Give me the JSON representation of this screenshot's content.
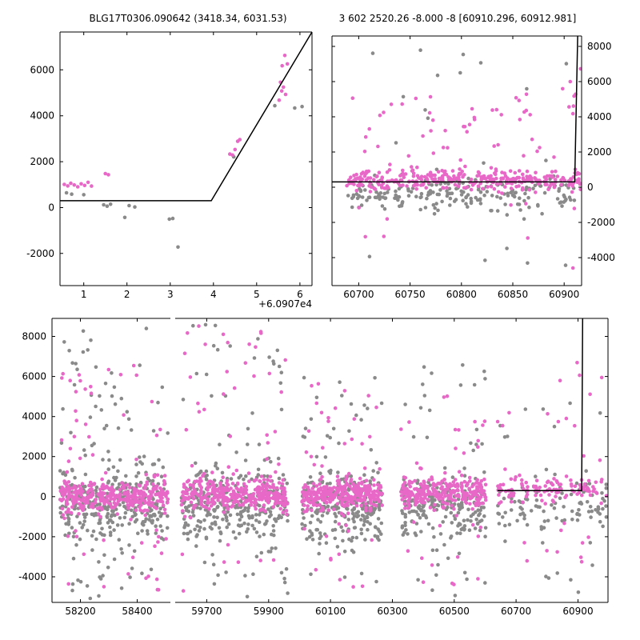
{
  "colors": {
    "magenta": "#e868c8",
    "gray": "#8a8a8a",
    "model_line": "#000000",
    "axis": "#000000",
    "background": "#ffffff"
  },
  "chart_data": [
    {
      "id": "top-left",
      "type": "scatter",
      "title": "BLG17T0306.090642 (3418.34, 6031.53)",
      "x_offset_label": "+6.0907e4",
      "xlim": [
        0.45,
        6.28
      ],
      "ylim": [
        -3400,
        7650
      ],
      "xticks": [
        1,
        2,
        3,
        4,
        5,
        6
      ],
      "yticks": [
        -2000,
        0,
        2000,
        4000,
        6000
      ],
      "ytick_side": "left",
      "points": {
        "gray": [
          [
            0.6,
            645
          ],
          [
            0.72,
            585
          ],
          [
            1.0,
            560
          ],
          [
            1.46,
            120
          ],
          [
            1.54,
            60
          ],
          [
            1.62,
            145
          ],
          [
            1.95,
            -430
          ],
          [
            2.05,
            85
          ],
          [
            2.18,
            25
          ],
          [
            2.98,
            -505
          ],
          [
            3.06,
            -475
          ],
          [
            3.18,
            -1720
          ],
          [
            4.47,
            2210
          ],
          [
            5.42,
            4440
          ],
          [
            5.88,
            4340
          ],
          [
            6.05,
            4400
          ]
        ],
        "magenta": [
          [
            0.55,
            1010
          ],
          [
            0.63,
            945
          ],
          [
            0.7,
            1060
          ],
          [
            0.78,
            985
          ],
          [
            0.86,
            905
          ],
          [
            0.94,
            1035
          ],
          [
            1.02,
            965
          ],
          [
            1.1,
            1100
          ],
          [
            1.18,
            935
          ],
          [
            1.5,
            1480
          ],
          [
            1.57,
            1430
          ],
          [
            4.38,
            2330
          ],
          [
            4.44,
            2290
          ],
          [
            4.5,
            2530
          ],
          [
            4.56,
            2890
          ],
          [
            4.61,
            2960
          ],
          [
            5.52,
            4680
          ],
          [
            5.55,
            5460
          ],
          [
            5.58,
            5080
          ],
          [
            5.62,
            5250
          ],
          [
            5.67,
            4930
          ],
          [
            5.59,
            6180
          ],
          [
            5.65,
            6630
          ],
          [
            5.71,
            6260
          ]
        ]
      },
      "model_line": [
        [
          0.45,
          300
        ],
        [
          3.95,
          300
        ],
        [
          6.28,
          7650
        ]
      ]
    },
    {
      "id": "top-right",
      "type": "scatter",
      "title": "3 602 2520.26 -8.000 -8 [60910.296, 60912.981]",
      "xlim": [
        60674,
        60917
      ],
      "ylim": [
        -5590,
        8590
      ],
      "xticks": [
        60700,
        60750,
        60800,
        60850,
        60900
      ],
      "yticks": [
        -4000,
        -2000,
        0,
        2000,
        4000,
        6000,
        8000
      ],
      "ytick_side": "right",
      "clusters": [
        {
          "color": "gray",
          "n": 200,
          "x": [
            60688,
            60914
          ],
          "dist": "normal",
          "mu": -450,
          "sigma": 480
        },
        {
          "color": "gray",
          "n": 26,
          "x": [
            60690,
            60910
          ],
          "dist": "uniform",
          "ymin": -4600,
          "ymax": 7800
        },
        {
          "color": "magenta",
          "n": 330,
          "x": [
            60688,
            60916
          ],
          "dist": "normal",
          "mu": 420,
          "sigma": 300
        },
        {
          "color": "magenta",
          "n": 48,
          "x": [
            60692,
            60914
          ],
          "dist": "uniform",
          "ymin": 900,
          "ymax": 5300
        },
        {
          "color": "magenta",
          "n": 7,
          "x": [
            60898,
            60916
          ],
          "dist": "uniform",
          "ymin": 4200,
          "ymax": 6900
        },
        {
          "color": "magenta",
          "n": 8,
          "x": [
            60700,
            60912
          ],
          "dist": "uniform",
          "ymin": -3100,
          "ymax": -900
        },
        {
          "color": "magenta",
          "n": 1,
          "x": [
            60908,
            60912
          ],
          "dist": "uniform",
          "ymin": -4700,
          "ymax": -4400
        }
      ],
      "model_line": [
        [
          60674,
          300
        ],
        [
          60910.3,
          300
        ],
        [
          60913.2,
          8590
        ]
      ]
    },
    {
      "id": "bottom",
      "type": "scatter",
      "broken_x": true,
      "segments": [
        {
          "xlim": [
            58100,
            58517
          ],
          "xticks": [
            58200,
            58400
          ]
        },
        {
          "xlim": [
            59598,
            60997
          ],
          "xticks": [
            59700,
            59900,
            60100,
            60300,
            60500,
            60700,
            60900
          ]
        }
      ],
      "ylim": [
        -5280,
        8900
      ],
      "yticks": [
        -4000,
        -2000,
        0,
        2000,
        4000,
        6000,
        8000
      ],
      "ytick_side": "left",
      "clusters": [
        {
          "color": "gray",
          "n": 300,
          "x": [
            58128,
            58508
          ],
          "dist": "normal",
          "mu": -350,
          "sigma": 950
        },
        {
          "color": "gray",
          "n": 90,
          "x": [
            58128,
            58508
          ],
          "dist": "uniform",
          "ymin": -5100,
          "ymax": 8800
        },
        {
          "color": "magenta",
          "n": 330,
          "x": [
            58128,
            58508
          ],
          "dist": "normal",
          "mu": 0,
          "sigma": 380
        },
        {
          "color": "magenta",
          "n": 70,
          "x": [
            58128,
            58508
          ],
          "dist": "uniform",
          "ymin": -5000,
          "ymax": 6600
        },
        {
          "color": "gray",
          "n": 280,
          "x": [
            59618,
            59962
          ],
          "dist": "normal",
          "mu": -450,
          "sigma": 900
        },
        {
          "color": "gray",
          "n": 60,
          "x": [
            59618,
            59962
          ],
          "dist": "uniform",
          "ymin": -5000,
          "ymax": 8800
        },
        {
          "color": "magenta",
          "n": 320,
          "x": [
            59618,
            59962
          ],
          "dist": "normal",
          "mu": 100,
          "sigma": 380
        },
        {
          "color": "magenta",
          "n": 55,
          "x": [
            59618,
            59962
          ],
          "dist": "uniform",
          "ymin": -4800,
          "ymax": 8800
        },
        {
          "color": "gray",
          "n": 240,
          "x": [
            60008,
            60268
          ],
          "dist": "normal",
          "mu": -550,
          "sigma": 850
        },
        {
          "color": "gray",
          "n": 45,
          "x": [
            60008,
            60268
          ],
          "dist": "uniform",
          "ymin": -4900,
          "ymax": 6200
        },
        {
          "color": "magenta",
          "n": 300,
          "x": [
            60008,
            60268
          ],
          "dist": "normal",
          "mu": 150,
          "sigma": 380
        },
        {
          "color": "magenta",
          "n": 45,
          "x": [
            60008,
            60268
          ],
          "dist": "uniform",
          "ymin": -4600,
          "ymax": 6200
        },
        {
          "color": "gray",
          "n": 200,
          "x": [
            60328,
            60602
          ],
          "dist": "normal",
          "mu": -550,
          "sigma": 800
        },
        {
          "color": "gray",
          "n": 40,
          "x": [
            60328,
            60602
          ],
          "dist": "uniform",
          "ymin": -5100,
          "ymax": 6600
        },
        {
          "color": "magenta",
          "n": 260,
          "x": [
            60328,
            60602
          ],
          "dist": "normal",
          "mu": 200,
          "sigma": 350
        },
        {
          "color": "magenta",
          "n": 40,
          "x": [
            60328,
            60602
          ],
          "dist": "uniform",
          "ymin": -4500,
          "ymax": 5200
        },
        {
          "color": "gray",
          "n": 90,
          "x": [
            60638,
            60992
          ],
          "dist": "normal",
          "mu": -450,
          "sigma": 700
        },
        {
          "color": "gray",
          "n": 28,
          "x": [
            60638,
            60992
          ],
          "dist": "uniform",
          "ymin": -4800,
          "ymax": 5200
        },
        {
          "color": "magenta",
          "n": 110,
          "x": [
            60638,
            60992
          ],
          "dist": "normal",
          "mu": 300,
          "sigma": 320
        },
        {
          "color": "magenta",
          "n": 30,
          "x": [
            60638,
            60992
          ],
          "dist": "uniform",
          "ymin": -4400,
          "ymax": 6800
        }
      ],
      "model_line": [
        [
          60640,
          300
        ],
        [
          60912,
          300
        ],
        [
          60915,
          8900
        ]
      ]
    }
  ]
}
